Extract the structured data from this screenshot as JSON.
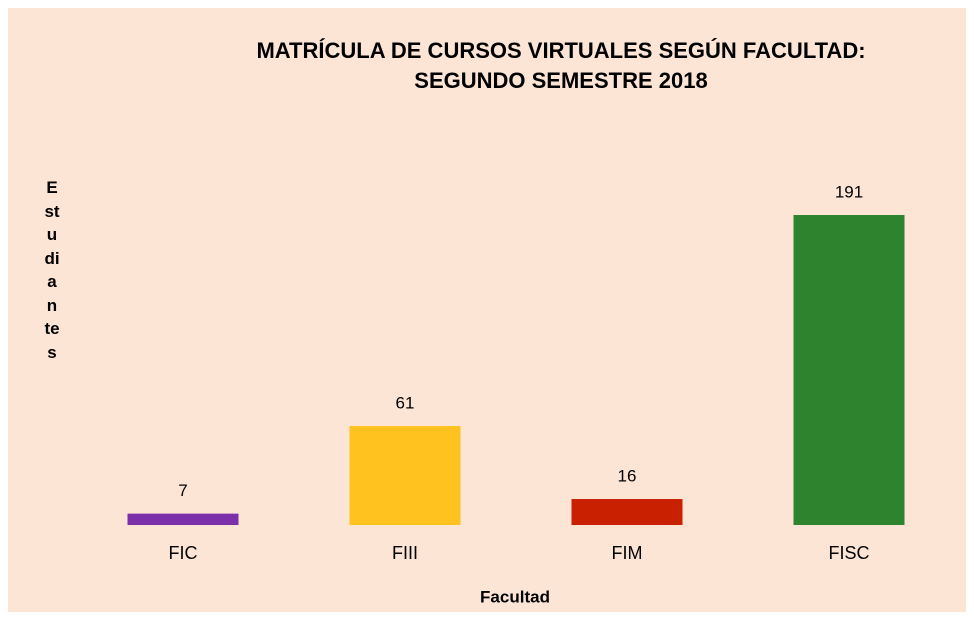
{
  "chart_data": {
    "type": "bar",
    "title": [
      "MATRÍCULA DE CURSOS VIRTUALES SEGÚN FACULTAD:",
      "SEGUNDO SEMESTRE 2018"
    ],
    "x_label": "Facultad",
    "y_label": "Estudiantes",
    "categories": [
      "FIC",
      "FIII",
      "FIM",
      "FISC"
    ],
    "values": [
      7,
      61,
      16,
      191
    ],
    "colors": [
      "#7b2fa8",
      "#ffc21f",
      "#c82000",
      "#2e842e"
    ],
    "ylim": [
      0,
      200
    ],
    "grid": false
  }
}
